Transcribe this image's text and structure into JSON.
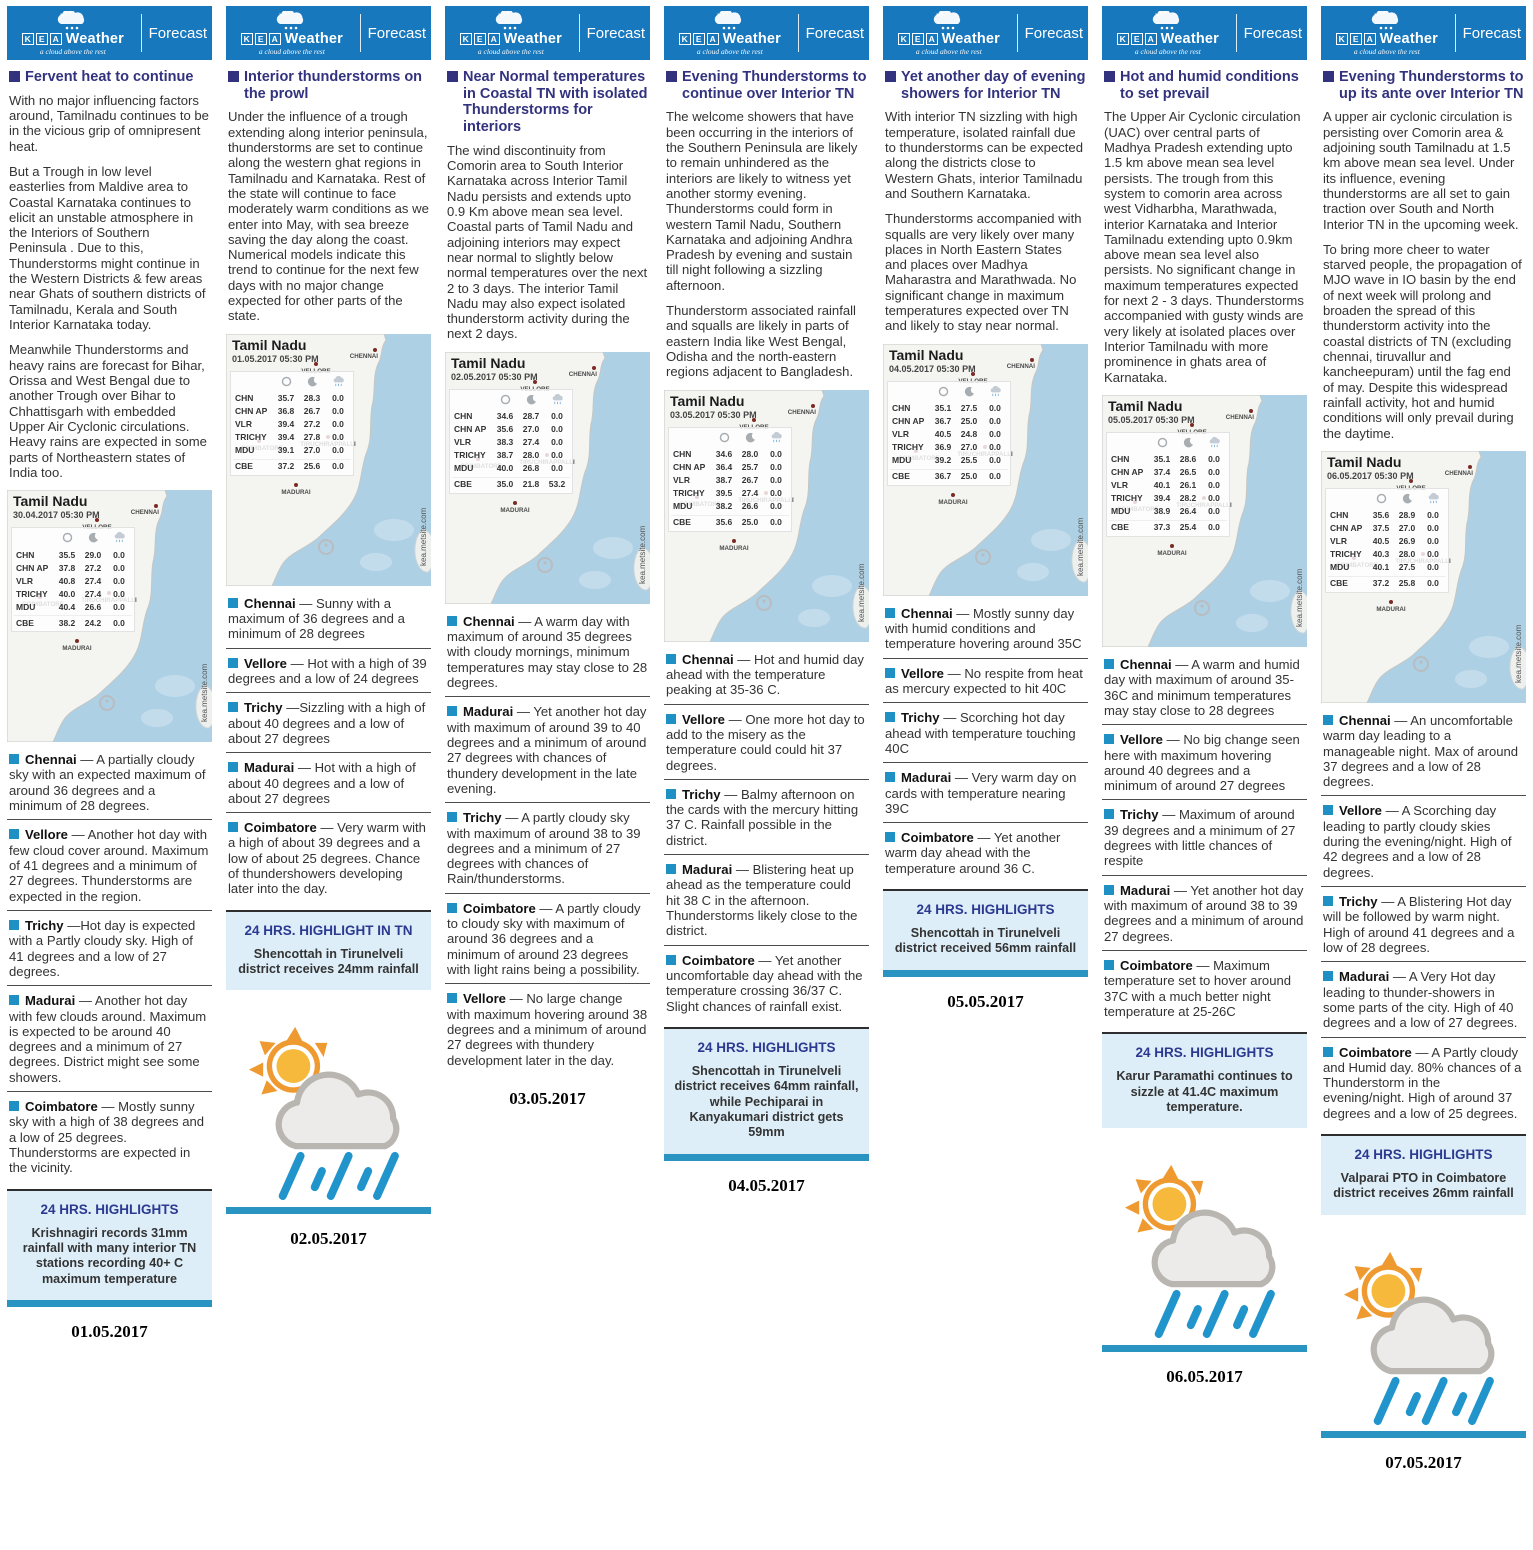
{
  "brand": {
    "k": "K",
    "e": "E",
    "a": "A",
    "name": "Weather",
    "tagline": "a cloud above the rest",
    "forecast": "Forecast"
  },
  "map": {
    "watermark": "kea.metsite.com",
    "cities": [
      "CHENNAI",
      "VELLORE",
      "COIMBATORE",
      "TIRUCHIRAPPALLI",
      "MADURAI"
    ]
  },
  "colors": {
    "header_blue": "#1878be",
    "headline_navy": "#32327e",
    "city_bullet_blue": "#1e90c3",
    "highlight_bg": "#ddeef8",
    "highlight_title_navy": "#2b3990",
    "bar_teal": "#2994c2",
    "rain_blue": "#2195cb",
    "sun_orange": "#ef9a30",
    "map_water": "#aed0e4"
  },
  "columns": [
    {
      "headline": "Fervent heat to continue",
      "paragraphs": [
        "With no major influencing factors around, Tamilnadu continues to be in the vicious grip of omnipresent heat.",
        "But a Trough in low level easterlies from Maldive area to Coastal Karnataka continues to elicit an unstable atmosphere in the Interiors of Southern Peninsula . Due to this, Thunderstorms might continue in the Western Districts & few areas near Ghats of southern districts of Tamilnadu, Kerala and South Interior Karnataka today.",
        "Meanwhile Thunderstorms and heavy rains are forecast for Bihar, Orissa and West Bengal due to another Trough over Bihar to Chhattisgarh with embedded Upper Air Cyclonic circulations. Heavy rains are expected in some parts of Northeastern states of India too."
      ],
      "table": {
        "region": "Tamil Nadu",
        "datetime": "30.04.2017 05:30 PM",
        "rows": [
          {
            "label": "CHN",
            "max": "35.5",
            "min": "29.0",
            "rain": "0.0"
          },
          {
            "label": "CHN AP",
            "max": "37.8",
            "min": "27.2",
            "rain": "0.0"
          },
          {
            "label": "VLR",
            "max": "40.8",
            "min": "27.4",
            "rain": "0.0"
          },
          {
            "label": "TRICHY",
            "max": "40.0",
            "min": "27.4",
            "rain": "0.0"
          },
          {
            "label": "MDU",
            "max": "40.4",
            "min": "26.6",
            "rain": "0.0"
          },
          {
            "label": "CBE",
            "max": "38.2",
            "min": "24.2",
            "rain": "0.0"
          }
        ]
      },
      "cities": [
        {
          "name": "Chennai",
          "text": "— A partially cloudy sky with an expected maximum of around 36 degrees and a minimum of 28 degrees."
        },
        {
          "name": "Vellore",
          "text": "— Another hot day with few cloud cover around. Maximum of 41 degrees and a minimum of 27 degrees. Thunderstorms are expected in the region."
        },
        {
          "name": "Trichy",
          "text": "—Hot day is expected with a Partly cloudy sky. High of 41 degrees and a low of 27 degrees."
        },
        {
          "name": "Madurai",
          "text": "— Another hot day with few clouds around. Maximum is expected to be around 40 degrees and a minimum of 27 degrees. District might see some showers."
        },
        {
          "name": "Coimbatore",
          "text": "— Mostly sunny sky with a high of 38 degrees and a low of 25 degrees. Thunderstorms are expected in the vicinity."
        }
      ],
      "highlights": {
        "title": "24 HRS. HIGHLIGHTS",
        "text": "Krishnagiri records 31mm rainfall with many interior TN stations recording 40+ C maximum temperature"
      },
      "icon": false,
      "bar": true,
      "date": "01.05.2017"
    },
    {
      "headline": "Interior thunderstorms on the prowl",
      "paragraphs": [
        "Under the influence of a trough extending along interior peninsula, thunderstorms are set to continue along the western ghat regions in Tamilnadu and Karnataka. Rest of the state will continue to face moderately warm conditions as we enter into May, with sea breeze saving the day along the coast. Numerical models indicate this trend to continue for the next few days with no major change expected for other parts of the state."
      ],
      "table": {
        "region": "Tamil Nadu",
        "datetime": "01.05.2017 05:30 PM",
        "rows": [
          {
            "label": "CHN",
            "max": "35.7",
            "min": "28.3",
            "rain": "0.0"
          },
          {
            "label": "CHN AP",
            "max": "36.8",
            "min": "26.7",
            "rain": "0.0"
          },
          {
            "label": "VLR",
            "max": "39.4",
            "min": "27.2",
            "rain": "0.0"
          },
          {
            "label": "TRICHY",
            "max": "39.4",
            "min": "27.8",
            "rain": "0.0"
          },
          {
            "label": "MDU",
            "max": "39.1",
            "min": "27.0",
            "rain": "0.0"
          },
          {
            "label": "CBE",
            "max": "37.2",
            "min": "25.6",
            "rain": "0.0"
          }
        ]
      },
      "cities": [
        {
          "name": "Chennai",
          "text": "— Sunny with a maximum of 36 degrees and a minimum of 28 degrees"
        },
        {
          "name": "Vellore",
          "text": "— Hot with a high of 39 degrees and a low of 24 degrees"
        },
        {
          "name": "Trichy",
          "text": "—Sizzling with a high of about 40 degrees and a low of about 27 degrees"
        },
        {
          "name": "Madurai",
          "text": "— Hot with a high of about 40 degrees and a low of about 27 degrees"
        },
        {
          "name": "Coimbatore",
          "text": "— Very warm with a high of about 39 degrees and a low of about 25 degrees. Chance of thundershowers developing later into the day."
        }
      ],
      "highlights": {
        "title": "24 HRS. HIGHLIGHT IN TN",
        "text": "Shencottah in Tirunelveli district receives 24mm rainfall"
      },
      "icon": true,
      "bar": true,
      "date": "02.05.2017"
    },
    {
      "headline": "Near Normal temperatures in Coastal TN with isolated Thunderstorms for interiors",
      "paragraphs": [
        "The wind discontinuity from Comorin area to South Interior Karnataka across Interior Tamil Nadu persists and extends upto 0.9 Km above mean sea level. Coastal parts of Tamil Nadu and adjoining interiors may expect near normal to slightly below normal temperatures over the next 2 to 3 days. The interior Tamil Nadu may also expect isolated thunderstorm activity during the next 2 days."
      ],
      "table": {
        "region": "Tamil Nadu",
        "datetime": "02.05.2017 05:30 PM",
        "rows": [
          {
            "label": "CHN",
            "max": "34.6",
            "min": "28.7",
            "rain": "0.0"
          },
          {
            "label": "CHN AP",
            "max": "35.6",
            "min": "27.0",
            "rain": "0.0"
          },
          {
            "label": "VLR",
            "max": "38.3",
            "min": "27.4",
            "rain": "0.0"
          },
          {
            "label": "TRICHY",
            "max": "38.7",
            "min": "28.0",
            "rain": "0.0"
          },
          {
            "label": "MDU",
            "max": "40.0",
            "min": "26.8",
            "rain": "0.0"
          },
          {
            "label": "CBE",
            "max": "35.0",
            "min": "21.8",
            "rain": "53.2"
          }
        ]
      },
      "cities": [
        {
          "name": "Chennai",
          "text": "— A warm day with maximum of around 35 degrees with cloudy mornings, minimum temperatures may stay close to 28 degrees."
        },
        {
          "name": "Madurai",
          "text": "— Yet another hot day with maximum of around 39 to 40 degrees and a minimum of around 27 degrees with chances of thundery development in the late evening."
        },
        {
          "name": "Trichy",
          "text": "— A partly cloudy sky with maximum of around 38 to 39 degrees and a minimum of 27 degrees with chances of Rain/thunderstorms."
        },
        {
          "name": "Coimbatore",
          "text": "— A partly cloudy to cloudy sky with maximum of around 36 degrees and a minimum of around 23 degrees with light rains being a possibility."
        },
        {
          "name": "Vellore",
          "text": "— No large change with maximum hovering around 38 degrees and a minimum of around 27 degrees with thundery development later in the day."
        }
      ],
      "highlights": null,
      "icon": false,
      "bar": false,
      "date": "03.05.2017"
    },
    {
      "headline": "Evening Thunderstorms to continue over Interior TN",
      "paragraphs": [
        "The welcome showers that have been occurring in the interiors of the Southern Peninsula are likely to remain unhindered as the interiors are likely to witness yet another stormy evening. Thunderstorms could form in western Tamil Nadu, Southern Karnataka and adjoining Andhra Pradesh by evening and sustain till night following a sizzling afternoon.",
        "Thunderstorm associated rainfall and squalls are likely in parts of eastern India like West Bengal, Odisha and the north-eastern regions adjacent to Bangladesh."
      ],
      "table": {
        "region": "Tamil Nadu",
        "datetime": "03.05.2017 05:30 PM",
        "rows": [
          {
            "label": "CHN",
            "max": "34.6",
            "min": "28.0",
            "rain": "0.0"
          },
          {
            "label": "CHN AP",
            "max": "36.4",
            "min": "25.7",
            "rain": "0.0"
          },
          {
            "label": "VLR",
            "max": "38.7",
            "min": "26.7",
            "rain": "0.0"
          },
          {
            "label": "TRICHY",
            "max": "39.5",
            "min": "27.4",
            "rain": "0.0"
          },
          {
            "label": "MDU",
            "max": "38.2",
            "min": "26.6",
            "rain": "0.0"
          },
          {
            "label": "CBE",
            "max": "35.6",
            "min": "25.0",
            "rain": "0.0"
          }
        ]
      },
      "cities": [
        {
          "name": "Chennai",
          "text": "— Hot and humid day ahead with the temperature peaking at 35-36 C."
        },
        {
          "name": "Vellore",
          "text": "— One more hot day to add to the misery as the temperature could could hit 37 degrees."
        },
        {
          "name": "Trichy",
          "text": "— Balmy afternoon on the cards with the mercury hitting 37 C. Rainfall possible in the district."
        },
        {
          "name": "Madurai",
          "text": "— Blistering heat up ahead as the temperature could hit 38 C in the afternoon. Thunderstorms likely close to the district."
        },
        {
          "name": "Coimbatore",
          "text": "— Yet another uncomfortable day ahead with the temperature crossing 36/37 C. Slight chances of rainfall exist."
        }
      ],
      "highlights": {
        "title": "24 HRS. HIGHLIGHTS",
        "text": "Shencottah in Tirunelveli district receives 64mm rainfall, while Pechiparai in Kanyakumari district gets 59mm"
      },
      "icon": false,
      "bar": true,
      "date": "04.05.2017"
    },
    {
      "headline": "Yet another day of evening showers for Interior TN",
      "paragraphs": [
        "With interior TN sizzling with high temperature, isolated rainfall due to thunderstorms can be expected along the districts close to Western Ghats, interior Tamilnadu and Southern Karnataka.",
        "Thunderstorms accompanied with squalls are very likely over many places in North Eastern States and places over Madhya Maharastra and Marathwada. No significant change in maximum temperatures expected over TN and likely to stay near normal."
      ],
      "table": {
        "region": "Tamil Nadu",
        "datetime": "04.05.2017 05:30 PM",
        "rows": [
          {
            "label": "CHN",
            "max": "35.1",
            "min": "27.5",
            "rain": "0.0"
          },
          {
            "label": "CHN AP",
            "max": "36.7",
            "min": "25.0",
            "rain": "0.0"
          },
          {
            "label": "VLR",
            "max": "40.5",
            "min": "24.8",
            "rain": "0.0"
          },
          {
            "label": "TRICHY",
            "max": "36.9",
            "min": "27.0",
            "rain": "0.0"
          },
          {
            "label": "MDU",
            "max": "39.2",
            "min": "25.5",
            "rain": "0.0"
          },
          {
            "label": "CBE",
            "max": "36.7",
            "min": "25.0",
            "rain": "0.0"
          }
        ]
      },
      "cities": [
        {
          "name": "Chennai",
          "text": "— Mostly sunny day with humid conditions and temperature hovering around 35C"
        },
        {
          "name": "Vellore",
          "text": "— No respite from heat as mercury expected to hit 40C"
        },
        {
          "name": "Trichy",
          "text": "— Scorching hot day ahead with temperature touching 40C"
        },
        {
          "name": "Madurai",
          "text": "—  Very warm day on cards with temperature nearing 39C"
        },
        {
          "name": "Coimbatore",
          "text": "— Yet another warm day ahead with the temperature around 36 C."
        }
      ],
      "highlights": {
        "title": "24 HRS. HIGHLIGHTS",
        "text": "Shencottah in Tirunelveli district received 56mm rainfall"
      },
      "icon": false,
      "bar": true,
      "date": "05.05.2017"
    },
    {
      "headline": "Hot and humid conditions to set prevail",
      "paragraphs": [
        "The Upper Air Cyclonic circulation (UAC) over central parts of Madhya Pradesh extending upto 1.5 km above mean sea level persists. The trough from this system to comorin area across west Vidharbha, Marathwada, interior Karnataka and Interior Tamilnadu extending upto 0.9km above mean sea level also persists. No significant change in maximum temperatures expected for next 2 - 3 days. Thunderstorms accompanied with gusty winds are very likely at isolated places over Interior Tamilnadu with more prominence in ghats area of Karnataka."
      ],
      "table": {
        "region": "Tamil Nadu",
        "datetime": "05.05.2017 05:30 PM",
        "rows": [
          {
            "label": "CHN",
            "max": "35.1",
            "min": "28.6",
            "rain": "0.0"
          },
          {
            "label": "CHN AP",
            "max": "37.4",
            "min": "26.5",
            "rain": "0.0"
          },
          {
            "label": "VLR",
            "max": "40.1",
            "min": "26.1",
            "rain": "0.0"
          },
          {
            "label": "TRICHY",
            "max": "39.4",
            "min": "28.2",
            "rain": "0.0"
          },
          {
            "label": "MDU",
            "max": "38.9",
            "min": "26.4",
            "rain": "0.0"
          },
          {
            "label": "CBE",
            "max": "37.3",
            "min": "25.4",
            "rain": "0.0"
          }
        ]
      },
      "cities": [
        {
          "name": "Chennai",
          "text": "— A warm and humid day with maximum of around 35-36C and minimum temperatures may stay close to 28 degrees"
        },
        {
          "name": "Vellore",
          "text": "— No big change seen here with maximum hovering around 40 degrees and a minimum of around 27 degrees"
        },
        {
          "name": "Trichy",
          "text": "— Maximum of around 39 degrees and a minimum of 27 degrees with little chances of respite"
        },
        {
          "name": "Madurai",
          "text": "—  Yet another hot day with maximum of around 38 to 39 degrees and a minimum of around 27 degrees."
        },
        {
          "name": "Coimbatore",
          "text": "— Maximum temperature set to hover around 37C with a much better night temperature at 25-26C"
        }
      ],
      "highlights": {
        "title": "24 HRS. HIGHLIGHTS",
        "text": "Karur Paramathi continues to sizzle at 41.4C maximum temperature."
      },
      "icon": true,
      "bar": true,
      "date": "06.05.2017"
    },
    {
      "headline": "Evening Thunderstorms to up its ante over Interior TN",
      "paragraphs": [
        "A upper air cyclonic circulation is persisting over Comorin area & adjoining south Tamilnadu at 1.5 km above mean sea level. Under its influence, evening thunderstorms are all set to gain traction over South and North Interior TN in the upcoming week.",
        "To bring more cheer to water starved people, the propagation of MJO wave in IO basin by the end of next week will prolong and broaden the spread of this thunderstorm activity into the coastal districts of TN (excluding chennai, tiruvallur and kancheepuram) until the fag end of may. Despite this widespread rainfall activity, hot and humid conditions will only prevail during the daytime."
      ],
      "table": {
        "region": "Tamil Nadu",
        "datetime": "06.05.2017 05:30 PM",
        "rows": [
          {
            "label": "CHN",
            "max": "35.6",
            "min": "28.9",
            "rain": "0.0"
          },
          {
            "label": "CHN AP",
            "max": "37.5",
            "min": "27.0",
            "rain": "0.0"
          },
          {
            "label": "VLR",
            "max": "40.5",
            "min": "26.9",
            "rain": "0.0"
          },
          {
            "label": "TRICHY",
            "max": "40.3",
            "min": "28.0",
            "rain": "0.0"
          },
          {
            "label": "MDU",
            "max": "40.1",
            "min": "27.5",
            "rain": "0.0"
          },
          {
            "label": "CBE",
            "max": "37.2",
            "min": "25.8",
            "rain": "0.0"
          }
        ]
      },
      "cities": [
        {
          "name": "Chennai",
          "text": "— An uncomfortable warm day leading to a manageable night. Max of around 37 degrees and a low of 28 degrees."
        },
        {
          "name": "Vellore",
          "text": "— A Scorching day leading to partly cloudy skies during the evening/night. High of 42 degrees and a low of 28 degrees."
        },
        {
          "name": "Trichy",
          "text": "— A Blistering Hot day will be followed by warm night. High of around 41 degrees and a low of 28 degrees."
        },
        {
          "name": "Madurai",
          "text": "— A Very Hot day leading to thunder-showers in some parts of the city. High of 40 degrees and a low of 27 degrees."
        },
        {
          "name": "Coimbatore",
          "text": "— A Partly cloudy and Humid day. 80% chances of a Thunderstorm in the evening/night. High of around 37 degrees and a low of 25 degrees."
        }
      ],
      "highlights": {
        "title": "24 HRS. HIGHLIGHTS",
        "text": "Valparai PTO in Coimbatore district receives 26mm rainfall"
      },
      "icon": true,
      "bar": true,
      "date": "07.05.2017"
    }
  ]
}
